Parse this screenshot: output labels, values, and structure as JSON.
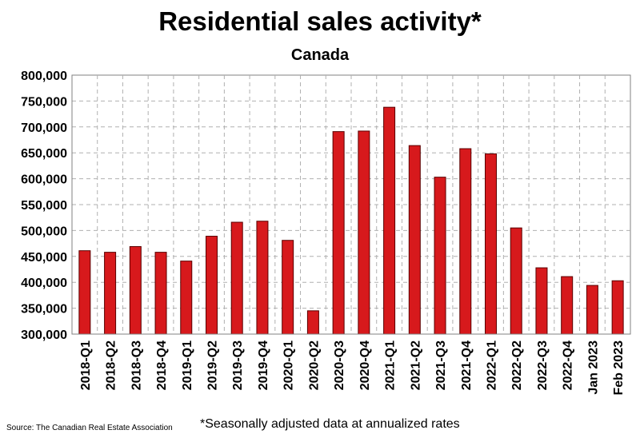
{
  "chart_data": {
    "type": "bar",
    "title": "Residential sales activity*",
    "subtitle": "Canada",
    "source": "Source: The Canadian Real Estate Association",
    "footnote": "*Seasonally adjusted data at annualized rates",
    "categories": [
      "2018-Q1",
      "2018-Q2",
      "2018-Q3",
      "2018-Q4",
      "2019-Q1",
      "2019-Q2",
      "2019-Q3",
      "2019-Q4",
      "2020-Q1",
      "2020-Q2",
      "2020-Q3",
      "2020-Q4",
      "2021-Q1",
      "2021-Q2",
      "2021-Q3",
      "2021-Q4",
      "2022-Q1",
      "2022-Q2",
      "2022-Q3",
      "2022-Q4",
      "Jan 2023",
      "Feb 2023"
    ],
    "values": [
      461000,
      458000,
      469000,
      458000,
      441000,
      489000,
      516000,
      518000,
      481000,
      345000,
      691000,
      692000,
      738000,
      664000,
      603000,
      658000,
      648000,
      505000,
      428000,
      411000,
      394000,
      403000
    ],
    "ylim": [
      300000,
      800000
    ],
    "yticks": [
      "300,000",
      "350,000",
      "400,000",
      "450,000",
      "500,000",
      "550,000",
      "600,000",
      "650,000",
      "700,000",
      "750,000",
      "800,000"
    ],
    "ytick_values": [
      300000,
      350000,
      400000,
      450000,
      500000,
      550000,
      600000,
      650000,
      700000,
      750000,
      800000
    ],
    "grid": true,
    "bar_color": "#d7191c",
    "bar_edge_color": "#5a0000"
  }
}
